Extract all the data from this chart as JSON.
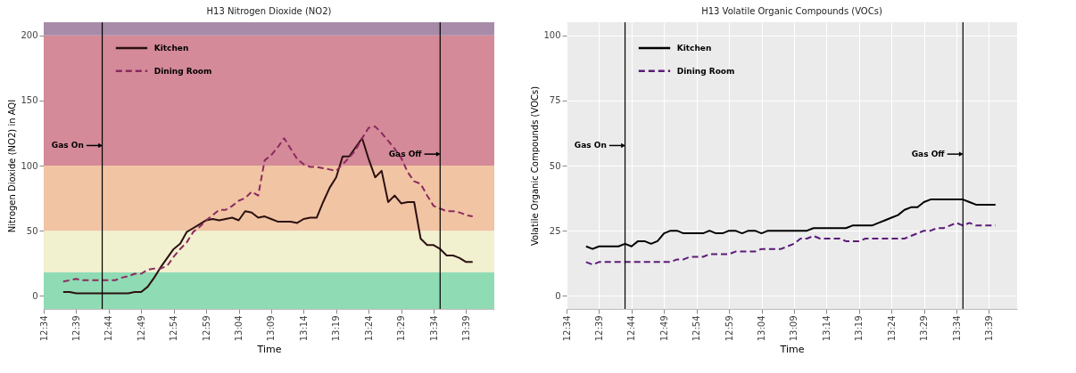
{
  "chart_data": [
    {
      "type": "line",
      "title": "H13 Nitrogen Dioxide (NO2)",
      "xlabel": "Time",
      "ylabel": "Nitrogen Dioxide (NO2) in AQI",
      "x": [
        12.6167,
        12.6333,
        12.65,
        12.6667,
        12.6833,
        12.7,
        12.7167,
        12.7333,
        12.75,
        12.7667,
        12.7833,
        12.8,
        12.8167,
        12.8333,
        12.85,
        12.8667,
        12.8833,
        12.9,
        12.9167,
        12.9333,
        12.95,
        12.9667,
        12.9833,
        13,
        13.0167,
        13.0333,
        13.05,
        13.0667,
        13.0833,
        13.1,
        13.1167,
        13.1333,
        13.15,
        13.1667,
        13.1833,
        13.2,
        13.2167,
        13.2333,
        13.25,
        13.2667,
        13.2833,
        13.3,
        13.3167,
        13.3333,
        13.35,
        13.3667,
        13.3833,
        13.4,
        13.4167,
        13.4333,
        13.45,
        13.4667,
        13.4833,
        13.5,
        13.5167,
        13.5333,
        13.55,
        13.5667,
        13.5833,
        13.6,
        13.6167,
        13.6333,
        13.65,
        13.6667
      ],
      "series": [
        {
          "name": "Kitchen",
          "color": "#2b1010",
          "line_style": "solid",
          "values": [
            3,
            3,
            2,
            2,
            2,
            2,
            2,
            2,
            2,
            2,
            2,
            3,
            3,
            7,
            14,
            22,
            29,
            36,
            40,
            49,
            52,
            55,
            58,
            59,
            58,
            59,
            60,
            58,
            65,
            64,
            60,
            61,
            59,
            57,
            57,
            57,
            56,
            59,
            60,
            60,
            72,
            83,
            91,
            107,
            107,
            114,
            121,
            105,
            91,
            96,
            72,
            77,
            71,
            72,
            72,
            44,
            39,
            39,
            36,
            31,
            31,
            29,
            26,
            26
          ]
        },
        {
          "name": "Dining Room",
          "color": "#8b2a5e",
          "line_style": "dashed",
          "values": [
            11,
            12,
            13,
            12,
            12,
            12,
            12,
            12,
            12,
            14,
            15,
            17,
            17,
            20,
            21,
            21,
            23,
            30,
            36,
            41,
            49,
            53,
            58,
            62,
            66,
            66,
            69,
            73,
            75,
            80,
            77,
            104,
            108,
            114,
            121,
            113,
            105,
            101,
            99,
            99,
            98,
            97,
            96,
            101,
            106,
            112,
            121,
            129,
            130,
            125,
            119,
            113,
            106,
            95,
            88,
            86,
            77,
            69,
            67,
            65,
            65,
            64,
            62,
            61
          ]
        }
      ],
      "xlim": [
        12.5667,
        13.7222
      ],
      "xticks": [
        {
          "value": 12.5667,
          "label": "12:34"
        },
        {
          "value": 12.65,
          "label": "12:39"
        },
        {
          "value": 12.7333,
          "label": "12:44"
        },
        {
          "value": 12.8167,
          "label": "12:49"
        },
        {
          "value": 12.9,
          "label": "12:54"
        },
        {
          "value": 12.9833,
          "label": "12:59"
        },
        {
          "value": 13.0667,
          "label": "13:04"
        },
        {
          "value": 13.15,
          "label": "13:09"
        },
        {
          "value": 13.2333,
          "label": "13:14"
        },
        {
          "value": 13.3167,
          "label": "13:19"
        },
        {
          "value": 13.4,
          "label": "13:24"
        },
        {
          "value": 13.4833,
          "label": "13:29"
        },
        {
          "value": 13.5667,
          "label": "13:34"
        },
        {
          "value": 13.65,
          "label": "13:39"
        }
      ],
      "ylim": [
        -10,
        210
      ],
      "yticks": [
        0,
        50,
        100,
        150,
        200
      ],
      "bands": [
        {
          "axis": "y",
          "from": -10,
          "to": 18,
          "color": "#8fdbb4"
        },
        {
          "axis": "y",
          "from": 18,
          "to": 50,
          "color": "#f1f0cf"
        },
        {
          "axis": "y",
          "from": 50,
          "to": 100,
          "color": "#f1c4a4"
        },
        {
          "axis": "y",
          "from": 100,
          "to": 200,
          "color": "#d48a99"
        },
        {
          "axis": "y",
          "from": 200,
          "to": 210,
          "color": "#a78ba8"
        }
      ],
      "ref_lines": [
        {
          "axis": "x",
          "value": 12.7167,
          "label": "Gas On"
        },
        {
          "axis": "x",
          "value": 13.5833,
          "label": "Gas Off"
        }
      ],
      "grid": true,
      "legend": "top left"
    },
    {
      "type": "line",
      "title": "H13 Volatile Organic Compounds (VOCs)",
      "xlabel": "Time",
      "ylabel": "Volatile Organic Compounds (VOCs)",
      "x": [
        12.6167,
        12.6333,
        12.65,
        12.6667,
        12.6833,
        12.7,
        12.7167,
        12.7333,
        12.75,
        12.7667,
        12.7833,
        12.8,
        12.8167,
        12.8333,
        12.85,
        12.8667,
        12.8833,
        12.9,
        12.9167,
        12.9333,
        12.95,
        12.9667,
        12.9833,
        13,
        13.0167,
        13.0333,
        13.05,
        13.0667,
        13.0833,
        13.1,
        13.1167,
        13.1333,
        13.15,
        13.1667,
        13.1833,
        13.2,
        13.2167,
        13.2333,
        13.25,
        13.2667,
        13.2833,
        13.3,
        13.3167,
        13.3333,
        13.35,
        13.3667,
        13.3833,
        13.4,
        13.4167,
        13.4333,
        13.45,
        13.4667,
        13.4833,
        13.5,
        13.5167,
        13.5333,
        13.55,
        13.5667,
        13.5833,
        13.6,
        13.6167,
        13.6333,
        13.65,
        13.6667
      ],
      "series": [
        {
          "name": "Kitchen",
          "color": "#000000",
          "line_style": "solid",
          "values": [
            19,
            18,
            19,
            19,
            19,
            19,
            20,
            19,
            21,
            21,
            20,
            21,
            24,
            25,
            25,
            24,
            24,
            24,
            24,
            25,
            24,
            24,
            25,
            25,
            24,
            25,
            25,
            24,
            25,
            25,
            25,
            25,
            25,
            25,
            25,
            26,
            26,
            26,
            26,
            26,
            26,
            27,
            27,
            27,
            27,
            28,
            29,
            30,
            31,
            33,
            34,
            34,
            36,
            37,
            37,
            37,
            37,
            37,
            37,
            36,
            35,
            35,
            35,
            35
          ]
        },
        {
          "name": "Dining Room",
          "color": "#5b1a78",
          "line_style": "dashed",
          "values": [
            13,
            12,
            13,
            13,
            13,
            13,
            13,
            13,
            13,
            13,
            13,
            13,
            13,
            13,
            14,
            14,
            15,
            15,
            15,
            16,
            16,
            16,
            16,
            17,
            17,
            17,
            17,
            18,
            18,
            18,
            18,
            19,
            20,
            22,
            22,
            23,
            22,
            22,
            22,
            22,
            21,
            21,
            21,
            22,
            22,
            22,
            22,
            22,
            22,
            22,
            23,
            24,
            25,
            25,
            26,
            26,
            27,
            28,
            27,
            28,
            27,
            27,
            27,
            27
          ]
        }
      ],
      "xlim": [
        12.5667,
        13.7222
      ],
      "xticks": [
        {
          "value": 12.5667,
          "label": "12:34"
        },
        {
          "value": 12.65,
          "label": "12:39"
        },
        {
          "value": 12.7333,
          "label": "12:44"
        },
        {
          "value": 12.8167,
          "label": "12:49"
        },
        {
          "value": 12.9,
          "label": "12:54"
        },
        {
          "value": 12.9833,
          "label": "12:59"
        },
        {
          "value": 13.0667,
          "label": "13:04"
        },
        {
          "value": 13.15,
          "label": "13:09"
        },
        {
          "value": 13.2333,
          "label": "13:14"
        },
        {
          "value": 13.3167,
          "label": "13:19"
        },
        {
          "value": 13.4,
          "label": "13:24"
        },
        {
          "value": 13.4833,
          "label": "13:29"
        },
        {
          "value": 13.5667,
          "label": "13:34"
        },
        {
          "value": 13.65,
          "label": "13:39"
        }
      ],
      "ylim": [
        -5,
        105
      ],
      "yticks": [
        0,
        25,
        50,
        75,
        100
      ],
      "ref_lines": [
        {
          "axis": "x",
          "value": 12.7167,
          "label": "Gas On"
        },
        {
          "axis": "x",
          "value": 13.5833,
          "label": "Gas Off"
        }
      ],
      "grid": true,
      "legend": "top left"
    }
  ]
}
